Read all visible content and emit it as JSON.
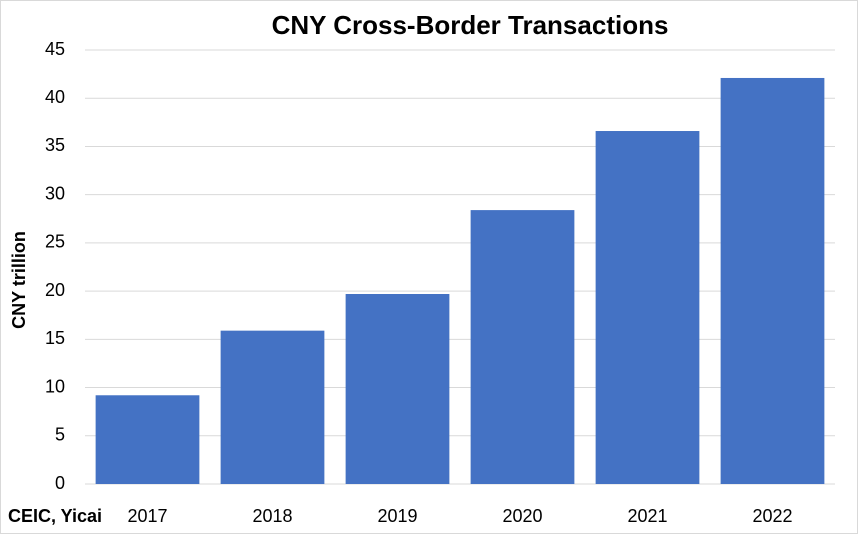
{
  "chart_data": {
    "type": "bar",
    "title": "CNY Cross-Border Transactions",
    "y_label": "CNY trillion",
    "source": "CEIC, Yicai",
    "categories": [
      "2017",
      "2018",
      "2019",
      "2020",
      "2021",
      "2022"
    ],
    "values": [
      9.2,
      15.9,
      19.7,
      28.4,
      36.6,
      42.1
    ],
    "color": "#4472c4",
    "ylim": [
      0,
      45
    ],
    "yticks": [
      0,
      5,
      10,
      15,
      20,
      25,
      30,
      35,
      40,
      45
    ],
    "grid": true
  }
}
